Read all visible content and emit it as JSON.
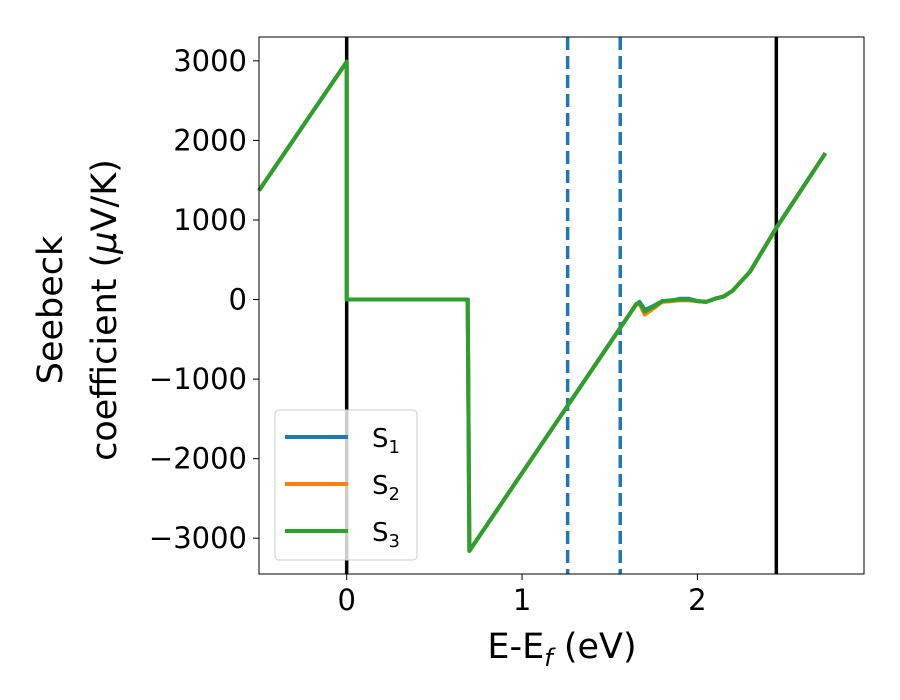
{
  "chart_data": {
    "type": "line",
    "xlabel": {
      "base": "E-E",
      "sub": "f",
      "rest": " (eV)"
    },
    "ylabel": {
      "line1": "Seebeck",
      "line2_text": "coefficient  (",
      "line2_symbol": "μ",
      "line2_rest": "V/K)"
    },
    "xlim": [
      -0.5,
      2.95
    ],
    "ylim": [
      -3450,
      3300
    ],
    "xticks": [
      0,
      1,
      2
    ],
    "xtick_labels": [
      "0",
      "1",
      "2"
    ],
    "yticks": [
      3000,
      2000,
      1000,
      0,
      -1000,
      -2000,
      -3000
    ],
    "ytick_labels": [
      "3000",
      "2000",
      "1000",
      "0",
      "−1000",
      "−2000",
      "−3000"
    ],
    "grid": false,
    "legend_position": "lower-left",
    "vertical_lines": [
      {
        "x": 0.0,
        "style": "solid",
        "color": "#000000"
      },
      {
        "x": 2.45,
        "style": "solid",
        "color": "#000000"
      },
      {
        "x": 1.26,
        "style": "dashed",
        "color": "#1f77b4"
      },
      {
        "x": 1.56,
        "style": "dashed",
        "color": "#1f77b4"
      }
    ],
    "series": [
      {
        "name": "S1",
        "label_base": "S",
        "label_sub": "1",
        "color": "#1f77b4",
        "x": [
          -0.5,
          0.0,
          0.0,
          0.69,
          0.7,
          1.62,
          1.65,
          1.67,
          1.7,
          1.75,
          1.8,
          1.85,
          1.9,
          1.95,
          2.0,
          2.05,
          2.1,
          2.15,
          2.2,
          2.3,
          2.45,
          2.73
        ],
        "y": [
          1370,
          2990,
          0,
          0,
          -3160,
          -160,
          -60,
          -30,
          -130,
          -80,
          -20,
          -20,
          10,
          10,
          -20,
          -30,
          10,
          40,
          110,
          350,
          900,
          1840
        ]
      },
      {
        "name": "S2",
        "label_base": "S",
        "label_sub": "2",
        "color": "#ff7f0e",
        "x": [
          -0.5,
          0.0,
          0.0,
          0.69,
          0.7,
          1.62,
          1.65,
          1.67,
          1.7,
          1.75,
          1.8,
          1.85,
          1.9,
          1.95,
          2.0,
          2.05,
          2.1,
          2.15,
          2.2,
          2.3,
          2.45,
          2.73
        ],
        "y": [
          1370,
          2990,
          0,
          0,
          -3160,
          -160,
          -70,
          -50,
          -190,
          -110,
          -30,
          -20,
          -10,
          -10,
          -20,
          -30,
          10,
          40,
          110,
          350,
          900,
          1840
        ]
      },
      {
        "name": "S3",
        "label_base": "S",
        "label_sub": "3",
        "color": "#2ca02c",
        "x": [
          -0.5,
          0.0,
          0.0,
          0.69,
          0.7,
          1.62,
          1.65,
          1.67,
          1.7,
          1.75,
          1.8,
          1.85,
          1.9,
          1.95,
          2.0,
          2.05,
          2.1,
          2.15,
          2.2,
          2.3,
          2.45,
          2.73
        ],
        "y": [
          1370,
          2990,
          0,
          0,
          -3160,
          -160,
          -60,
          -40,
          -150,
          -90,
          -20,
          -10,
          0,
          0,
          -20,
          -30,
          10,
          40,
          110,
          350,
          900,
          1840
        ]
      }
    ]
  }
}
